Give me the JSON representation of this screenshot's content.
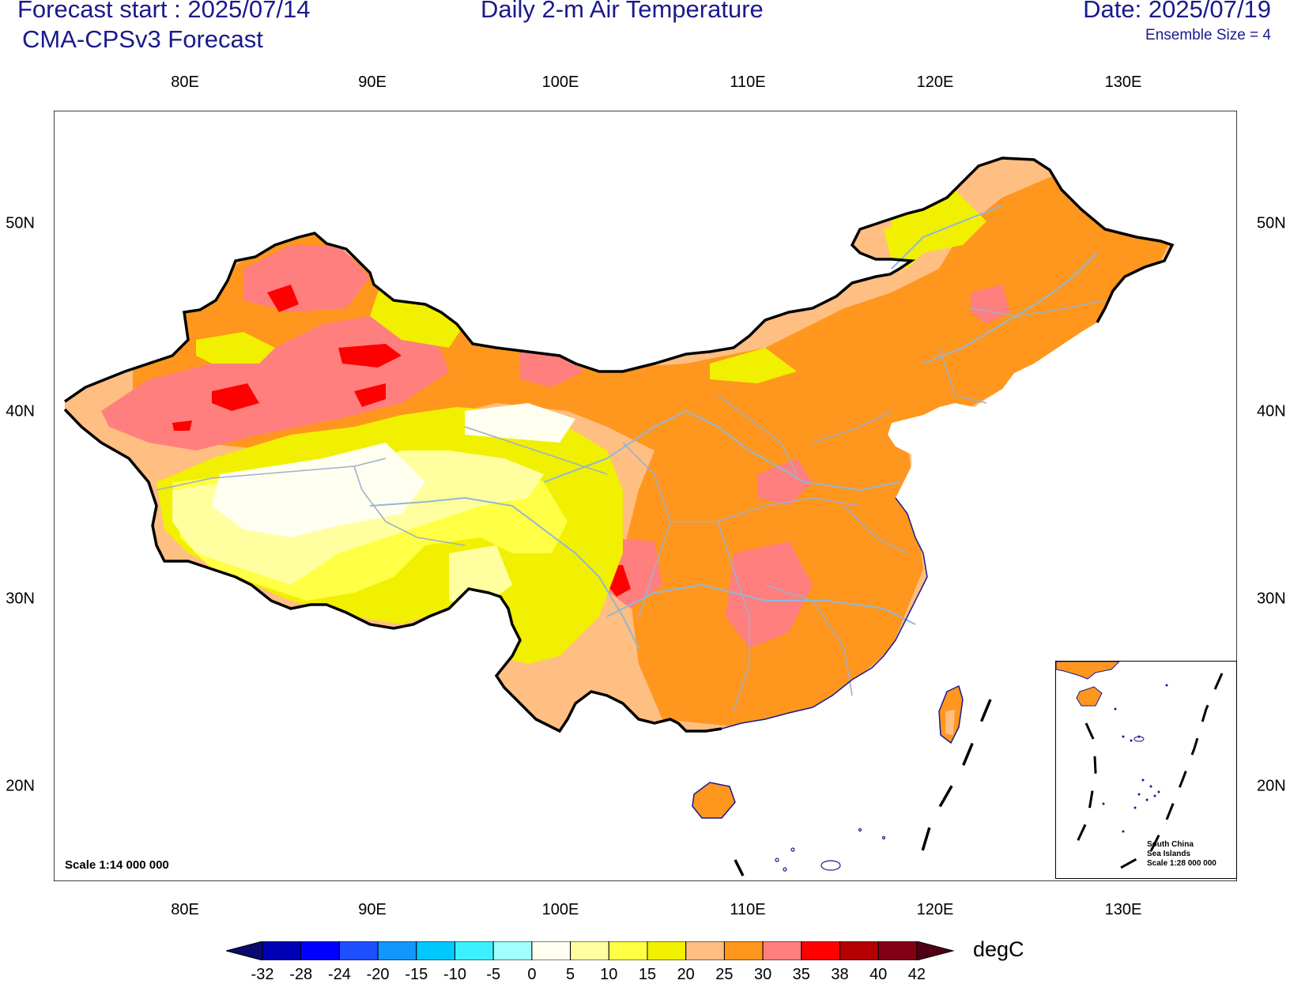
{
  "header": {
    "forecast_start": "Forecast start : 2025/07/14",
    "model": "CMA-CPSv3 Forecast",
    "title": "Daily 2-m Air Temperature",
    "date": "Date: 2025/07/19",
    "ensemble": "Ensemble Size = 4"
  },
  "axes": {
    "lon_labels": [
      "80E",
      "90E",
      "100E",
      "110E",
      "120E",
      "130E"
    ],
    "lat_labels": [
      "50N",
      "40N",
      "30N",
      "20N"
    ]
  },
  "map": {
    "scale_label": "Scale 1:14 000 000",
    "inset_title": [
      "South China",
      "Sea Islands",
      "Scale 1:28 000 000"
    ]
  },
  "colorbar": {
    "levels": [
      "-32",
      "-28",
      "-24",
      "-20",
      "-15",
      "-10",
      "-5",
      "0",
      "5",
      "10",
      "15",
      "20",
      "25",
      "30",
      "35",
      "38",
      "40",
      "42"
    ],
    "colors": [
      "#0a0a6e",
      "#0000b4",
      "#0000ff",
      "#1e50ff",
      "#1496ff",
      "#00c8ff",
      "#3cf0ff",
      "#a0ffff",
      "#fffff0",
      "#ffffa0",
      "#ffff46",
      "#f0f000",
      "#ffbe82",
      "#ff961e",
      "#ff7f7f",
      "#ff0000",
      "#b40000",
      "#820014",
      "#500014"
    ],
    "units": "degC"
  }
}
